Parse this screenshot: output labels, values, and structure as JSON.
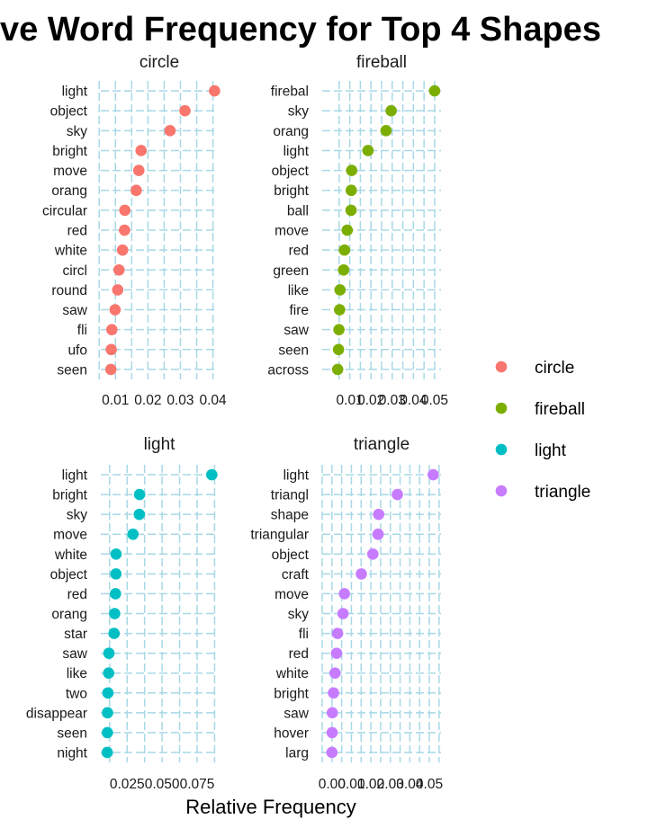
{
  "chart_data": {
    "type": "scatter",
    "title": "ve Word Frequency for Top 4 Shapes",
    "xlabel": "Relative Frequency",
    "legend": {
      "position": "right",
      "entries": [
        {
          "name": "circle",
          "color": "#F8766D"
        },
        {
          "name": "fireball",
          "color": "#7CAE00"
        },
        {
          "name": "light",
          "color": "#00BFC4"
        },
        {
          "name": "triangle",
          "color": "#C77CFF"
        }
      ]
    },
    "grid": true,
    "panels": [
      {
        "name": "circle",
        "color": "#F8766D",
        "xlim": [
          0.0055,
          0.0415
        ],
        "xticks": [
          0.01,
          0.02,
          0.03,
          0.04
        ],
        "xtick_labels": [
          "0.01",
          "0.02",
          "0.03",
          "0.04"
        ],
        "categories": [
          "light",
          "object",
          "sky",
          "bright",
          "move",
          "orang",
          "circular",
          "red",
          "white",
          "circl",
          "round",
          "saw",
          "fli",
          "ufo",
          "seen"
        ],
        "values": [
          0.0405,
          0.0314,
          0.0268,
          0.0179,
          0.0172,
          0.0164,
          0.0129,
          0.0128,
          0.0122,
          0.0111,
          0.0107,
          0.0099,
          0.0089,
          0.0087,
          0.0086
        ]
      },
      {
        "name": "fireball",
        "color": "#7CAE00",
        "xlim": [
          -0.003,
          0.053
        ],
        "xticks": [
          0.01,
          0.02,
          0.03,
          0.04,
          0.05
        ],
        "xtick_labels": [
          "0.01",
          "0.02",
          "0.03",
          "0.04",
          "0.05"
        ],
        "categories": [
          "firebal",
          "sky",
          "orang",
          "light",
          "object",
          "bright",
          "ball",
          "move",
          "red",
          "green",
          "like",
          "fire",
          "saw",
          "seen",
          "across"
        ],
        "values": [
          0.05,
          0.0295,
          0.0271,
          0.0186,
          0.0109,
          0.0107,
          0.0106,
          0.0088,
          0.0075,
          0.0071,
          0.0054,
          0.0052,
          0.0049,
          0.0047,
          0.0043
        ]
      },
      {
        "name": "light",
        "color": "#00BFC4",
        "xlim": [
          0.0062,
          0.0898
        ],
        "xticks": [
          0.025,
          0.05,
          0.075
        ],
        "xtick_labels": [
          "0.025",
          "0.050",
          "0.075"
        ],
        "categories": [
          "light",
          "bright",
          "sky",
          "move",
          "white",
          "object",
          "red",
          "orang",
          "star",
          "saw",
          "like",
          "two",
          "disappear",
          "seen",
          "night"
        ],
        "values": [
          0.0855,
          0.0339,
          0.0337,
          0.0292,
          0.0171,
          0.017,
          0.0167,
          0.0161,
          0.0157,
          0.012,
          0.0118,
          0.0113,
          0.011,
          0.0109,
          0.0108
        ]
      },
      {
        "name": "triangle",
        "color": "#C77CFF",
        "xlim": [
          -0.005,
          0.056
        ],
        "xticks": [
          0.0,
          0.01,
          0.02,
          0.03,
          0.04,
          0.05
        ],
        "xtick_labels": [
          "0.00",
          "0.01",
          "0.02",
          "0.03",
          "0.04",
          "0.05"
        ],
        "categories": [
          "light",
          "triangl",
          "shape",
          "triangular",
          "object",
          "craft",
          "move",
          "sky",
          "fli",
          "red",
          "white",
          "bright",
          "saw",
          "hover",
          "larg"
        ],
        "values": [
          0.052,
          0.0336,
          0.024,
          0.0237,
          0.021,
          0.0151,
          0.0064,
          0.0057,
          0.0029,
          0.0024,
          0.0016,
          0.0008,
          0.0002,
          0.0001,
          0.0
        ]
      }
    ]
  }
}
